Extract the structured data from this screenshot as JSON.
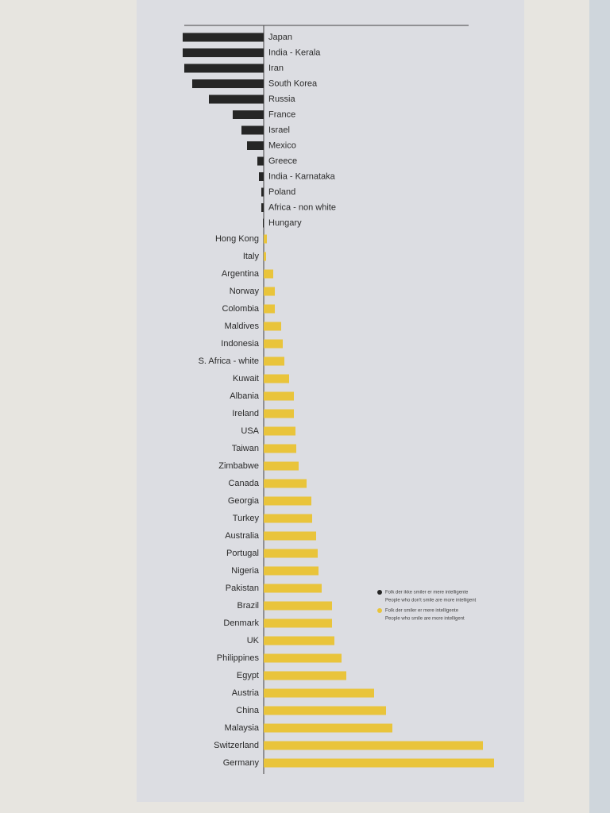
{
  "chart_data": {
    "type": "diverging-bar",
    "categories": [
      "Japan",
      "India - Kerala",
      "Iran",
      "South Korea",
      "Russia",
      "France",
      "Israel",
      "Mexico",
      "Greece",
      "India - Karnataka",
      "Poland",
      "Africa - non white",
      "Hungary",
      "Hong Kong",
      "Italy",
      "Argentina",
      "Norway",
      "Colombia",
      "Maldives",
      "Indonesia",
      "S. Africa - white",
      "Kuwait",
      "Albania",
      "Ireland",
      "USA",
      "Taiwan",
      "Zimbabwe",
      "Canada",
      "Georgia",
      "Turkey",
      "Australia",
      "Portugal",
      "Nigeria",
      "Pakistan",
      "Brazil",
      "Denmark",
      "UK",
      "Philippines",
      "Egypt",
      "Austria",
      "China",
      "Malaysia",
      "Switzerland",
      "Germany"
    ],
    "values": [
      -102,
      -102,
      -100,
      -90,
      -69,
      -39,
      -28,
      -21,
      -8,
      -6,
      -3,
      -3,
      -1,
      4,
      3,
      12,
      14,
      14,
      22,
      24,
      26,
      32,
      38,
      38,
      40,
      41,
      44,
      54,
      60,
      61,
      66,
      68,
      69,
      73,
      86,
      86,
      89,
      98,
      104,
      139,
      154,
      162,
      276,
      290
    ],
    "legend": [
      {
        "label": "Folk der ikke smiler er mere intelligente",
        "translation": "People who don't smile are more intelligent",
        "color": "#262626"
      },
      {
        "label": "Folk der smiler er mere intelligente",
        "translation": "People who smile are more intelligent",
        "color": "#e9c43b"
      }
    ]
  }
}
